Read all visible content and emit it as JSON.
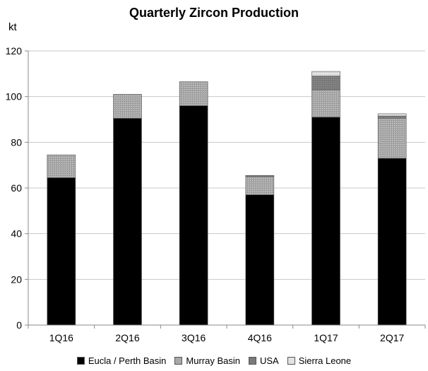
{
  "chart_data": {
    "type": "bar",
    "stacked": true,
    "title": "Quarterly Zircon Production",
    "ylabel": "kt",
    "xlabel": "",
    "ylim": [
      0,
      120
    ],
    "yticks": [
      "0",
      "20",
      "40",
      "60",
      "80",
      "100",
      "120"
    ],
    "grid": true,
    "legend_position": "bottom",
    "categories": [
      "1Q16",
      "2Q16",
      "3Q16",
      "4Q16",
      "1Q17",
      "2Q17"
    ],
    "series": [
      {
        "name": "Eucla / Perth Basin",
        "color": "#000000",
        "values": [
          64.5,
          90.5,
          96,
          57,
          91,
          73
        ]
      },
      {
        "name": "Murray Basin",
        "color": "#a8a8a8",
        "values": [
          10,
          10.5,
          10.5,
          8,
          12,
          17.5
        ]
      },
      {
        "name": "USA",
        "color": "#7a7a7a",
        "values": [
          0,
          0,
          0,
          0.5,
          6,
          1
        ]
      },
      {
        "name": "Sierra Leone",
        "color": "#d9d9d9",
        "values": [
          0,
          0,
          0,
          0,
          2,
          1
        ]
      }
    ]
  }
}
